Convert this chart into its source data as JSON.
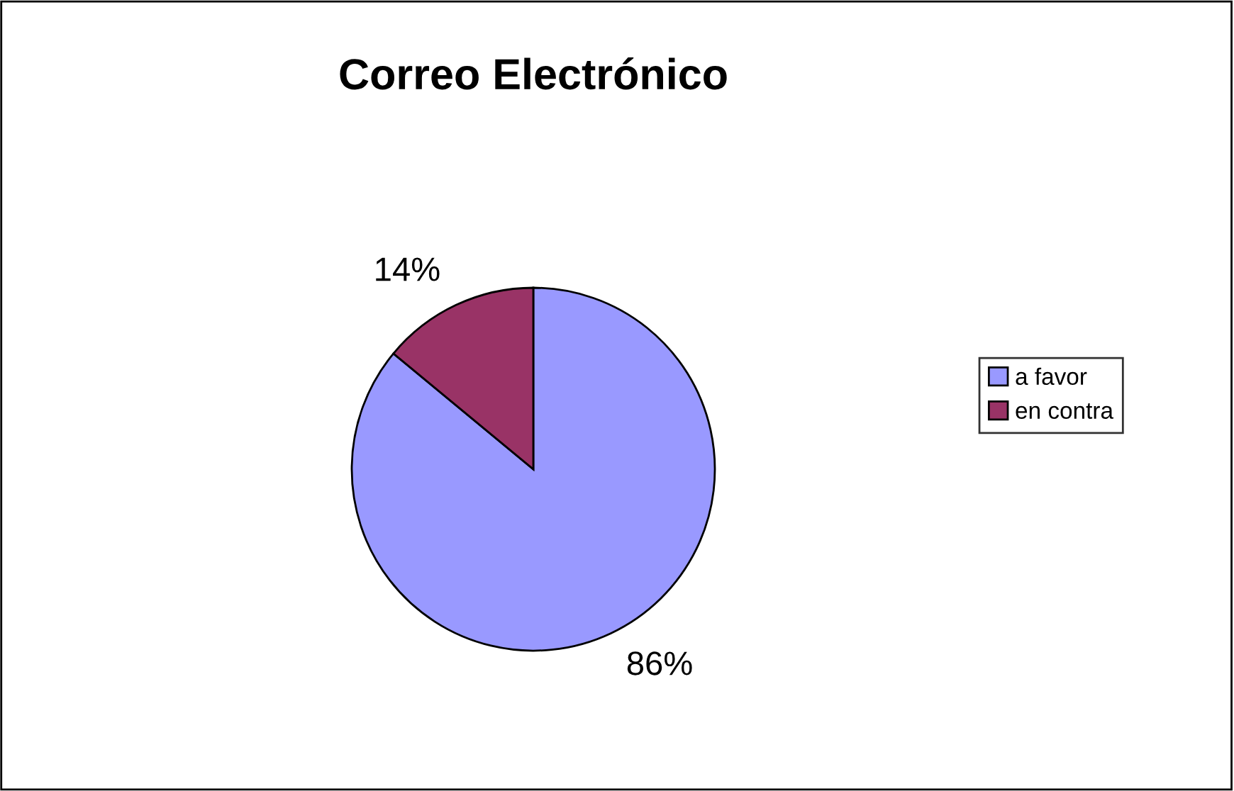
{
  "chart_data": {
    "type": "pie",
    "title": "Correo Electrónico",
    "categories": [
      "a favor",
      "en contra"
    ],
    "values": [
      86,
      14
    ],
    "colors": [
      "#9999ff",
      "#993366"
    ],
    "value_labels": [
      "86%",
      "14%"
    ],
    "legend": "right"
  }
}
